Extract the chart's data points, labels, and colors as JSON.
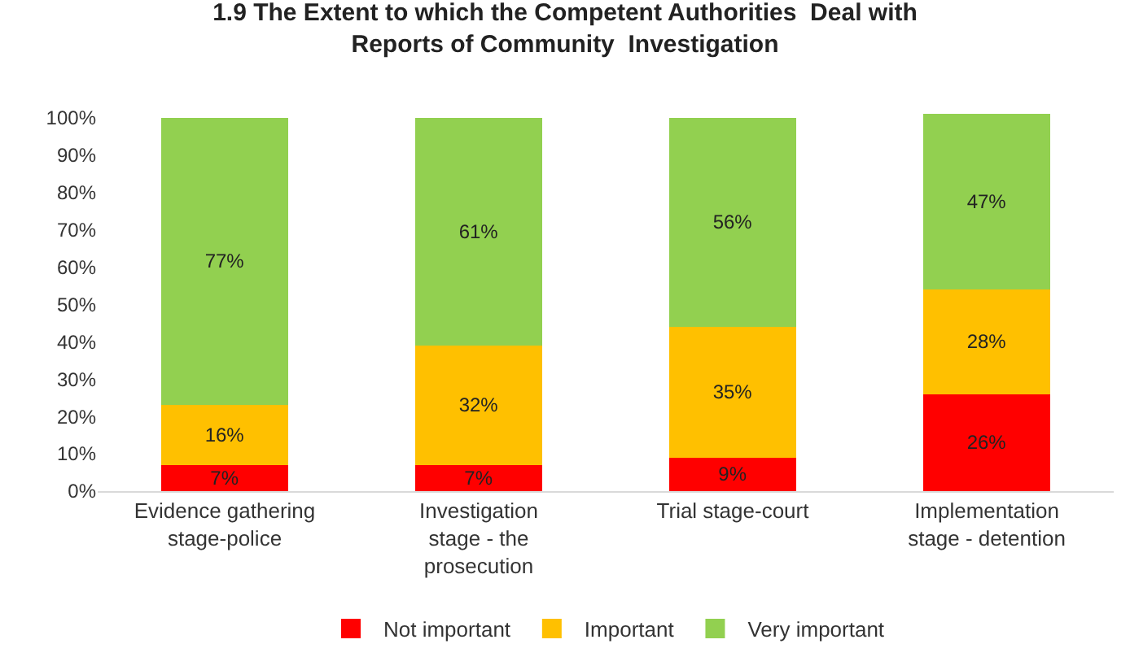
{
  "chart_data": {
    "type": "bar",
    "stacked": true,
    "title": "1.9 The Extent to which the Competent Authorities  Deal with Reports of Community  Investigation",
    "categories": [
      "Evidence gathering stage-police",
      "Investigation stage - the prosecution",
      "Trial stage-court",
      "Implementation stage - detention"
    ],
    "series": [
      {
        "name": "Not important",
        "color": "#ff0000",
        "values": [
          7,
          7,
          9,
          26
        ],
        "value_labels": [
          "7%",
          "7%",
          "9%",
          "26%"
        ]
      },
      {
        "name": "Important",
        "color": "#ffc000",
        "values": [
          16,
          32,
          35,
          28
        ],
        "value_labels": [
          "16%",
          "32%",
          "35%",
          "28%"
        ]
      },
      {
        "name": "Very important",
        "color": "#92d050",
        "values": [
          77,
          61,
          56,
          47
        ],
        "value_labels": [
          "77%",
          "61%",
          "56%",
          "47%"
        ]
      }
    ],
    "ylim": [
      0,
      101
    ],
    "yticks": [
      {
        "value": 0,
        "label": "0%"
      },
      {
        "value": 10,
        "label": "10%"
      },
      {
        "value": 20,
        "label": "20%"
      },
      {
        "value": 30,
        "label": "30%"
      },
      {
        "value": 40,
        "label": "40%"
      },
      {
        "value": 50,
        "label": "50%"
      },
      {
        "value": 60,
        "label": "60%"
      },
      {
        "value": 70,
        "label": "70%"
      },
      {
        "value": 80,
        "label": "80%"
      },
      {
        "value": 90,
        "label": "90%"
      },
      {
        "value": 100,
        "label": "100%"
      }
    ],
    "legend": "bottom",
    "grid": false
  }
}
